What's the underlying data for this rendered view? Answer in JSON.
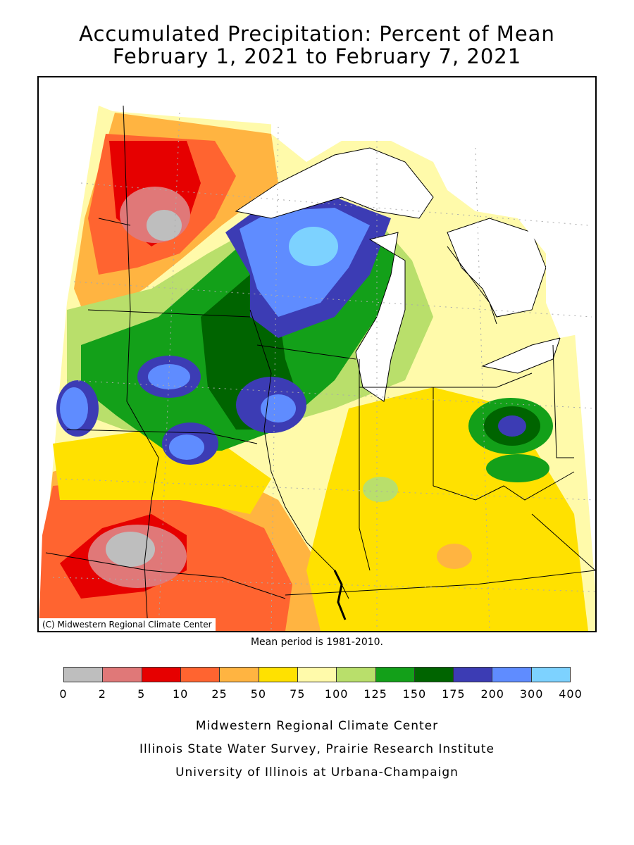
{
  "title_line1": "Accumulated Precipitation: Percent of Mean",
  "title_line2": "February 1, 2021 to February 7, 2021",
  "copyright": "(C) Midwestern Regional Climate Center",
  "mean_period": "Mean period is 1981-2010.",
  "legend": {
    "colors": [
      "#bebebe",
      "#e07878",
      "#e60000",
      "#ff6430",
      "#ffb441",
      "#ffe100",
      "#fffaaa",
      "#b9df6b",
      "#13a019",
      "#006400",
      "#3c3cb4",
      "#5f8cff",
      "#7dd2ff"
    ],
    "ticks": [
      "0",
      "2",
      "5",
      "10",
      "25",
      "50",
      "75",
      "100",
      "125",
      "150",
      "175",
      "200",
      "300",
      "400"
    ]
  },
  "footer": {
    "line1": "Midwestern Regional Climate Center",
    "line2": "Illinois State Water Survey, Prairie Research Institute",
    "line3": "University of Illinois at Urbana-Champaign"
  }
}
